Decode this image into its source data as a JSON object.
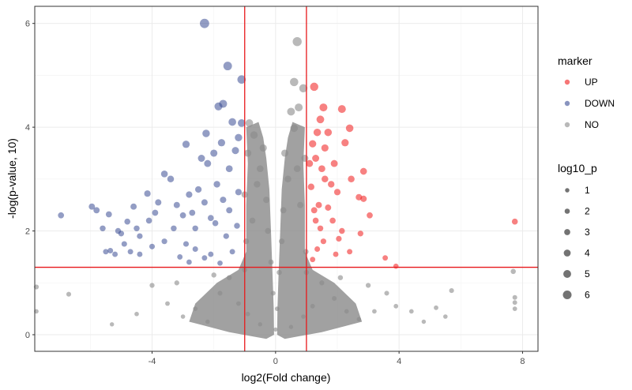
{
  "chart_data": {
    "type": "scatter",
    "title": "",
    "xlabel": "log2(Fold change)",
    "ylabel": "-log(p-value, 10)",
    "xlim": [
      -7.8,
      8.5
    ],
    "ylim": [
      -0.32,
      6.33
    ],
    "x_ticks": [
      -4,
      0,
      4,
      8
    ],
    "x_tick_labels": [
      "-4",
      "0",
      "4",
      "8"
    ],
    "y_ticks": [
      0,
      2,
      4,
      6
    ],
    "y_tick_labels": [
      "0",
      "2",
      "4",
      "6"
    ],
    "grid": true,
    "thresholds": {
      "vertical": [
        -1,
        1
      ],
      "horizontal": 1.3,
      "color": "#e8191c"
    },
    "colors": {
      "UP": "#f01a1a",
      "DOWN": "#3a4c94",
      "NO": "#8a8a8a"
    },
    "legend_marker": {
      "title": "marker",
      "entries": [
        {
          "label": "UP",
          "color": "#f01a1a"
        },
        {
          "label": "DOWN",
          "color": "#3a4c94"
        },
        {
          "label": "NO",
          "color": "#8a8a8a"
        }
      ]
    },
    "legend_size": {
      "title": "log10_p",
      "entries": [
        {
          "label": "1",
          "value": 1
        },
        {
          "label": "2",
          "value": 2
        },
        {
          "label": "3",
          "value": 3
        },
        {
          "label": "4",
          "value": 4
        },
        {
          "label": "5",
          "value": 5
        },
        {
          "label": "6",
          "value": 6
        }
      ]
    },
    "series": [
      {
        "name": "DOWN",
        "points": [
          [
            -2.3,
            6.0
          ],
          [
            -1.55,
            5.18
          ],
          [
            -1.1,
            4.92
          ],
          [
            -1.7,
            4.45
          ],
          [
            -1.85,
            4.4
          ],
          [
            -1.4,
            4.1
          ],
          [
            -1.1,
            4.08
          ],
          [
            -2.25,
            3.88
          ],
          [
            -2.9,
            3.67
          ],
          [
            -2.4,
            3.4
          ],
          [
            -2.2,
            3.3
          ],
          [
            -3.6,
            3.1
          ],
          [
            -3.4,
            3.0
          ],
          [
            -2.8,
            2.7
          ],
          [
            -4.15,
            2.72
          ],
          [
            -3.8,
            2.55
          ],
          [
            -3.2,
            2.5
          ],
          [
            -4.6,
            2.47
          ],
          [
            -5.95,
            2.47
          ],
          [
            -5.8,
            2.4
          ],
          [
            -6.95,
            2.3
          ],
          [
            -5.4,
            2.32
          ],
          [
            -4.1,
            2.2
          ],
          [
            -4.8,
            2.18
          ],
          [
            -5.6,
            2.05
          ],
          [
            -5.1,
            2.0
          ],
          [
            -5.0,
            1.95
          ],
          [
            -4.4,
            1.9
          ],
          [
            -3.6,
            1.8
          ],
          [
            -4.0,
            1.7
          ],
          [
            -4.4,
            1.55
          ],
          [
            -4.7,
            1.6
          ],
          [
            -5.2,
            1.55
          ],
          [
            -5.35,
            1.62
          ],
          [
            -5.5,
            1.6
          ],
          [
            -2.8,
            1.4
          ],
          [
            -2.3,
            1.48
          ],
          [
            -1.8,
            1.38
          ],
          [
            -2.6,
            2.05
          ],
          [
            -2.1,
            2.25
          ],
          [
            -1.7,
            2.6
          ],
          [
            -1.9,
            2.9
          ],
          [
            -1.5,
            3.2
          ],
          [
            -1.3,
            3.55
          ],
          [
            -1.2,
            3.8
          ],
          [
            -1.6,
            1.9
          ],
          [
            -1.25,
            2.1
          ],
          [
            -1.4,
            1.6
          ],
          [
            -3.0,
            2.3
          ],
          [
            -2.5,
            2.8
          ],
          [
            -2.0,
            3.5
          ],
          [
            -1.75,
            3.7
          ],
          [
            -3.3,
            2.05
          ],
          [
            -2.9,
            1.75
          ],
          [
            -3.9,
            2.35
          ],
          [
            -3.1,
            1.5
          ],
          [
            -2.6,
            1.65
          ],
          [
            -2.1,
            1.55
          ],
          [
            -1.5,
            2.4
          ],
          [
            -1.2,
            2.75
          ],
          [
            -4.9,
            1.75
          ],
          [
            -4.5,
            2.05
          ],
          [
            -2.7,
            2.35
          ],
          [
            -2.3,
            2.55
          ],
          [
            -1.95,
            2.15
          ]
        ]
      },
      {
        "name": "UP",
        "points": [
          [
            1.25,
            4.78
          ],
          [
            1.55,
            4.38
          ],
          [
            2.15,
            4.35
          ],
          [
            1.45,
            4.15
          ],
          [
            2.4,
            3.98
          ],
          [
            1.35,
            3.9
          ],
          [
            1.7,
            3.9
          ],
          [
            2.25,
            3.7
          ],
          [
            1.2,
            3.68
          ],
          [
            1.6,
            3.6
          ],
          [
            1.9,
            3.3
          ],
          [
            2.85,
            3.15
          ],
          [
            2.45,
            3.0
          ],
          [
            1.5,
            3.2
          ],
          [
            1.8,
            2.9
          ],
          [
            2.0,
            2.75
          ],
          [
            2.7,
            2.65
          ],
          [
            2.85,
            2.62
          ],
          [
            1.4,
            2.5
          ],
          [
            3.05,
            2.3
          ],
          [
            1.3,
            2.2
          ],
          [
            2.15,
            2.0
          ],
          [
            2.75,
            1.95
          ],
          [
            1.55,
            1.8
          ],
          [
            2.4,
            1.6
          ],
          [
            1.95,
            1.55
          ],
          [
            3.55,
            1.48
          ],
          [
            1.2,
            1.45
          ],
          [
            3.9,
            1.32
          ],
          [
            7.75,
            2.18
          ],
          [
            1.1,
            3.3
          ],
          [
            1.15,
            2.85
          ],
          [
            1.25,
            2.4
          ],
          [
            1.45,
            2.05
          ],
          [
            1.7,
            2.45
          ],
          [
            1.35,
            1.65
          ],
          [
            1.85,
            2.2
          ],
          [
            2.05,
            1.85
          ],
          [
            1.6,
            3.0
          ],
          [
            1.3,
            3.4
          ]
        ]
      },
      {
        "name": "NO",
        "points": [
          [
            0.7,
            5.65
          ],
          [
            0.6,
            4.87
          ],
          [
            0.9,
            4.75
          ],
          [
            0.75,
            4.38
          ],
          [
            0.5,
            4.3
          ],
          [
            -0.85,
            4.08
          ],
          [
            -0.7,
            3.85
          ],
          [
            0.6,
            3.98
          ],
          [
            -0.4,
            3.6
          ],
          [
            0.3,
            3.5
          ],
          [
            -0.5,
            3.2
          ],
          [
            0.4,
            3.0
          ],
          [
            -0.3,
            2.6
          ],
          [
            0.25,
            2.4
          ],
          [
            -0.25,
            2.0
          ],
          [
            0.2,
            1.8
          ],
          [
            -0.15,
            1.4
          ],
          [
            0.12,
            1.2
          ],
          [
            -0.08,
            0.8
          ],
          [
            0.05,
            0.5
          ],
          [
            0.0,
            0.1
          ],
          [
            0.7,
            3.2
          ],
          [
            -0.6,
            2.9
          ],
          [
            0.8,
            2.5
          ],
          [
            -0.75,
            2.2
          ],
          [
            -7.75,
            0.92
          ],
          [
            -6.7,
            0.78
          ],
          [
            -7.75,
            0.45
          ],
          [
            7.75,
            0.72
          ],
          [
            7.75,
            0.62
          ],
          [
            7.75,
            0.5
          ],
          [
            7.7,
            1.22
          ],
          [
            5.7,
            0.85
          ],
          [
            5.2,
            0.52
          ],
          [
            5.5,
            0.35
          ],
          [
            3.9,
            0.55
          ],
          [
            3.6,
            0.8
          ],
          [
            3.2,
            0.45
          ],
          [
            2.7,
            0.3
          ],
          [
            2.3,
            0.45
          ],
          [
            -3.5,
            0.6
          ],
          [
            -3.0,
            0.35
          ],
          [
            -2.6,
            0.5
          ],
          [
            -2.2,
            0.25
          ],
          [
            -1.8,
            0.8
          ],
          [
            -4.0,
            0.95
          ],
          [
            -1.5,
            1.1
          ],
          [
            1.5,
            1.0
          ],
          [
            1.9,
            0.7
          ],
          [
            -1.2,
            0.6
          ],
          [
            1.2,
            0.55
          ],
          [
            -0.9,
            0.4
          ],
          [
            0.9,
            0.35
          ],
          [
            -0.5,
            0.2
          ],
          [
            0.5,
            0.15
          ],
          [
            -1.0,
            1.25
          ],
          [
            1.0,
            1.2
          ],
          [
            -2.0,
            1.15
          ],
          [
            2.1,
            1.1
          ],
          [
            -3.2,
            1.0
          ],
          [
            3.0,
            0.95
          ],
          [
            4.4,
            0.45
          ],
          [
            -4.5,
            0.4
          ],
          [
            -5.3,
            0.2
          ],
          [
            4.8,
            0.25
          ],
          [
            -0.9,
            3.5
          ],
          [
            0.95,
            3.4
          ],
          [
            -1.0,
            2.7
          ],
          [
            -0.95,
            1.8
          ],
          [
            0.98,
            1.6
          ]
        ]
      }
    ]
  }
}
